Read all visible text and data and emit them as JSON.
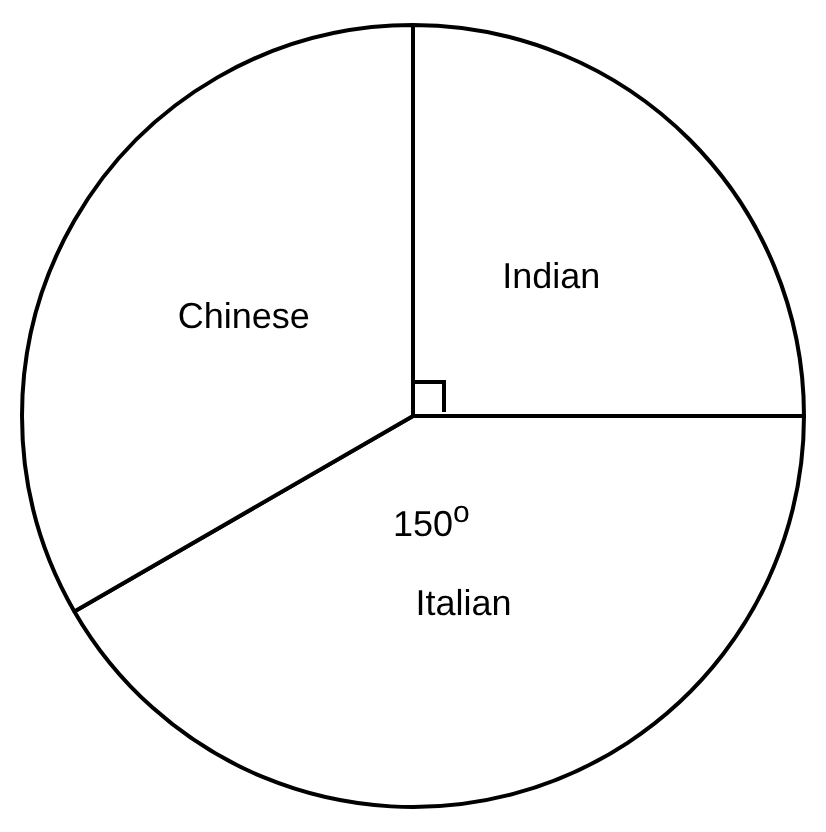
{
  "chart_data": {
    "type": "pie",
    "categories": [
      "Indian",
      "Italian",
      "Chinese"
    ],
    "values": [
      25,
      41.67,
      33.33
    ],
    "colors": [
      "#ffffff",
      "#ffffff",
      "#ffffff"
    ],
    "annotations": [
      "150$^{o}$"
    ],
    "legend": false
  }
}
